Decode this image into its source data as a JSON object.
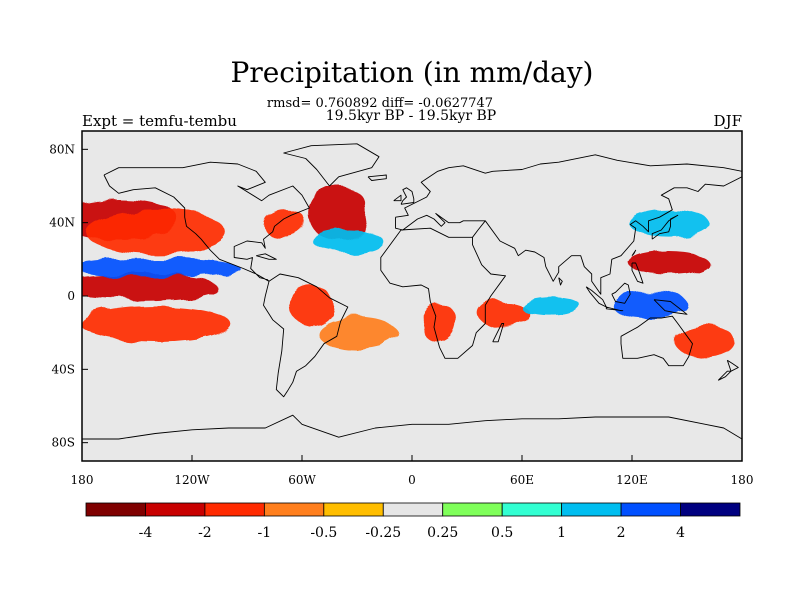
{
  "title": "Precipitation (in mm/day)",
  "stats": "rmsd= 0.760892 diff= -0.0627747",
  "subtitle": "19.5kyr BP - 19.5kyr BP",
  "left_label": "Expt = temfu-tembu",
  "right_label": "DJF",
  "colors": {
    "ocean_background": "#e8e8e8",
    "coast": "#000000",
    "frame": "#000000"
  },
  "chart_data": {
    "type": "heatmap",
    "projection": "cylindrical-equidistant",
    "xlim": [
      -180,
      180
    ],
    "ylim": [
      -90,
      90
    ],
    "x_ticks": [
      {
        "value": -180,
        "label": "180"
      },
      {
        "value": -120,
        "label": "120W"
      },
      {
        "value": -60,
        "label": "60W"
      },
      {
        "value": 0,
        "label": "0"
      },
      {
        "value": 60,
        "label": "60E"
      },
      {
        "value": 120,
        "label": "120E"
      },
      {
        "value": 180,
        "label": "180"
      }
    ],
    "y_ticks": [
      {
        "value": 80,
        "label": "80N"
      },
      {
        "value": 40,
        "label": "40N"
      },
      {
        "value": 0,
        "label": "0"
      },
      {
        "value": -40,
        "label": "40S"
      },
      {
        "value": -80,
        "label": "80S"
      }
    ],
    "colorbar": {
      "colors": [
        "#7f0000",
        "#c80000",
        "#ff2a00",
        "#ff7f1e",
        "#ffbe00",
        "#e6e6e6",
        "#7fff5a",
        "#32ffd2",
        "#00bef0",
        "#0050ff",
        "#000080"
      ],
      "levels": [
        "-4",
        "-2",
        "-1",
        "-0.5",
        "-0.25",
        "0.25",
        "0.5",
        "1",
        "2",
        "4"
      ]
    },
    "anomaly_regions": [
      {
        "region": "North Pacific",
        "lon": -160,
        "lat": 42,
        "class": "-2"
      },
      {
        "region": "North Pacific",
        "lon": -140,
        "lat": 35,
        "class": "-1"
      },
      {
        "region": "Central Pacific near equator",
        "lon": -150,
        "lat": 5,
        "class": "-2"
      },
      {
        "region": "Central Pacific north of equator",
        "lon": -140,
        "lat": 15,
        "class": "2"
      },
      {
        "region": "South Pacific",
        "lon": -140,
        "lat": -15,
        "class": "-1"
      },
      {
        "region": "Eastern North Atlantic",
        "lon": -40,
        "lat": 45,
        "class": "-2"
      },
      {
        "region": "Western North Atlantic",
        "lon": -70,
        "lat": 40,
        "class": "-1"
      },
      {
        "region": "Central Atlantic",
        "lon": -35,
        "lat": 30,
        "class": "1"
      },
      {
        "region": "Amazon",
        "lon": -55,
        "lat": -5,
        "class": "-1"
      },
      {
        "region": "South Atlantic",
        "lon": -30,
        "lat": -20,
        "class": "-0.5"
      },
      {
        "region": "Southern Africa",
        "lon": 15,
        "lat": -15,
        "class": "-1"
      },
      {
        "region": "Western Indian Ocean",
        "lon": 50,
        "lat": -10,
        "class": "-1"
      },
      {
        "region": "Central Indian Ocean",
        "lon": 75,
        "lat": -5,
        "class": "1"
      },
      {
        "region": "Western Pacific north",
        "lon": 140,
        "lat": 18,
        "class": "-2"
      },
      {
        "region": "Maritime Continent",
        "lon": 130,
        "lat": -5,
        "class": "2"
      },
      {
        "region": "Northwest Pacific",
        "lon": 140,
        "lat": 40,
        "class": "1"
      },
      {
        "region": "Southwest Pacific",
        "lon": 160,
        "lat": -25,
        "class": "-1"
      }
    ]
  }
}
